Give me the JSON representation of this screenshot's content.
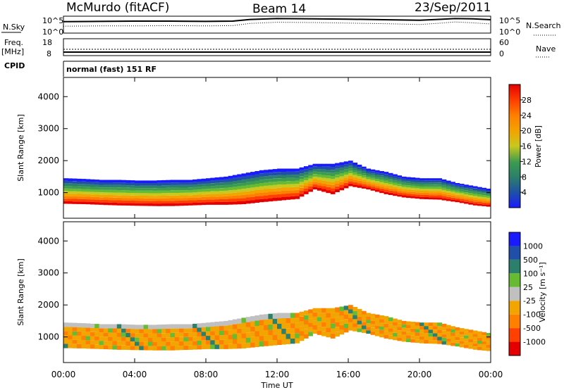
{
  "header": {
    "station": "McMurdo (fitACF)",
    "beam": "Beam 14",
    "date": "23/Sep/2011",
    "cpid_label": "CPID",
    "cpid_value": "normal (fast) 151 RF"
  },
  "chart_data": [
    {
      "type": "line",
      "name": "noise-panel",
      "left_label": "N.Sky",
      "right_label": "N.Search",
      "left_ticks": [
        "10^5",
        "10^0"
      ],
      "right_ticks": [
        "10^5",
        "10^0"
      ],
      "series": [
        {
          "name": "N.Sky",
          "style": "solid",
          "x": [
            0,
            2,
            4,
            6,
            8,
            9.5,
            10.5,
            12,
            14,
            16,
            18,
            20,
            21,
            22,
            23,
            24
          ],
          "values": [
            3.8,
            3.9,
            4.0,
            4.0,
            3.9,
            4.0,
            4.6,
            4.9,
            4.8,
            4.7,
            4.5,
            4.3,
            4.6,
            4.9,
            4.8,
            4.5
          ]
        },
        {
          "name": "N.Search",
          "style": "dotted",
          "x": [
            0,
            2,
            4,
            6,
            8,
            9.5,
            10.5,
            12,
            14,
            16,
            18,
            20,
            21,
            22,
            23,
            24
          ],
          "values": [
            2.2,
            2.3,
            2.3,
            2.4,
            2.3,
            2.4,
            3.2,
            3.6,
            3.5,
            3.3,
            3.1,
            2.8,
            3.2,
            3.7,
            3.4,
            3.0
          ]
        }
      ]
    },
    {
      "type": "line",
      "name": "frequency-panel",
      "left_label": "Freq.",
      "left_unit": "[MHz]",
      "right_label": "Nave",
      "left_ticks": [
        "18",
        "8"
      ],
      "right_ticks": [
        "60",
        "0"
      ],
      "series": [
        {
          "name": "Freq",
          "style": "solid",
          "x": [
            0,
            24
          ],
          "values": [
            9.5,
            9.5
          ]
        },
        {
          "name": "Nave",
          "style": "dotted",
          "x": [
            0,
            24
          ],
          "values": [
            40,
            40
          ]
        }
      ]
    },
    {
      "type": "heatmap",
      "name": "power-panel",
      "ylabel": "Slant Range [km]",
      "yticks": [
        "1000",
        "2000",
        "3000",
        "4000"
      ],
      "ylim": [
        200,
        4600
      ],
      "xlim": [
        0,
        24
      ],
      "colorbar_label": "Power [dB]",
      "colorbar_ticks": [
        "4",
        "8",
        "12",
        "16",
        "20",
        "24",
        "28"
      ],
      "colorbar_range": [
        0,
        32
      ],
      "colors": [
        "#1a1aff",
        "#1f4fa8",
        "#2c7f6a",
        "#3d9b50",
        "#66bb33",
        "#c8c81e",
        "#f2a400",
        "#ff7f00",
        "#ff4000",
        "#e50000"
      ],
      "band": {
        "x": [
          0,
          1,
          2,
          3,
          4,
          5,
          6,
          7,
          8,
          9,
          10,
          11,
          12,
          13,
          14,
          15,
          16,
          17,
          18,
          19,
          20,
          21,
          22,
          23,
          24
        ],
        "bottom": [
          650,
          640,
          620,
          600,
          590,
          580,
          580,
          600,
          620,
          620,
          640,
          700,
          750,
          800,
          1100,
          950,
          1200,
          1100,
          950,
          850,
          800,
          780,
          700,
          600,
          550
        ],
        "top": [
          1450,
          1430,
          1400,
          1400,
          1380,
          1380,
          1400,
          1400,
          1450,
          1500,
          1600,
          1700,
          1750,
          1750,
          1900,
          1900,
          2000,
          1750,
          1650,
          1500,
          1450,
          1450,
          1300,
          1200,
          1100
        ]
      }
    },
    {
      "type": "heatmap",
      "name": "velocity-panel",
      "ylabel": "Slant Range [km]",
      "yticks": [
        "1000",
        "2000",
        "3000",
        "4000"
      ],
      "ylim": [
        200,
        4600
      ],
      "xlim": [
        0,
        24
      ],
      "xticks": [
        "00:00",
        "04:00",
        "08:00",
        "12:00",
        "16:00",
        "20:00",
        "00:00"
      ],
      "xlabel": "Time UT",
      "colorbar_label": "Velocity [m s⁻¹]",
      "colorbar_ticks": [
        "1000",
        "500",
        "100",
        "25",
        "-25",
        "-100",
        "-500",
        "-1000"
      ],
      "colors": [
        "#1a1aff",
        "#1f4fa8",
        "#2c7f6a",
        "#66bb33",
        "#c0c0c0",
        "#f2a400",
        "#ff7f00",
        "#ff4000",
        "#e50000"
      ]
    }
  ]
}
